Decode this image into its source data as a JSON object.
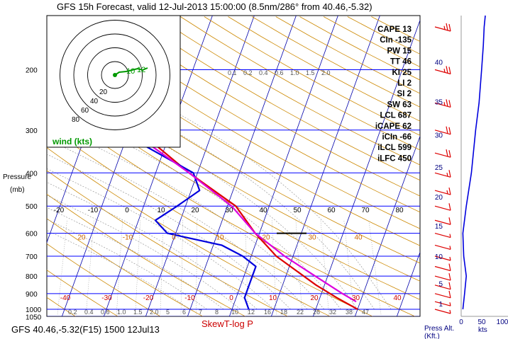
{
  "chart_data": {
    "type": "skew-t log-p",
    "title": "GFS 15h Forecast, valid 12-Jul-2013 15:00:00 (8.5nm/286° from 40.46,-5.32)",
    "xlabel": "SkewT-log P",
    "ylabel": "Pressure",
    "ylabel_unit": "(mb)",
    "footer": "GFS 40.46,-5.32(F15) 1500 12Jul13",
    "pressure_ticks": [
      1050,
      1000,
      900,
      800,
      700,
      600,
      500,
      400,
      300,
      200
    ],
    "temperature_ticks": {
      "upper_row": [
        "-20",
        "-10",
        "0",
        "10",
        "20",
        "30",
        "40",
        "50",
        "60",
        "70",
        "80"
      ],
      "middle_row": [
        "20",
        "-10",
        "0",
        "10",
        "20",
        "30",
        "40"
      ],
      "lower_row": [
        "-40",
        "-30",
        "-20",
        "-10",
        "0",
        "10",
        "20",
        "30",
        "40"
      ]
    },
    "mixing_ratio_labels_top": [
      "0.1",
      "0.2",
      "0.4",
      "0.6",
      "1.0",
      "1.5",
      "2.0"
    ],
    "mixing_ratio_labels_bottom": [
      "0.2",
      "0.4",
      "0.6",
      "1.0",
      "1.5",
      "2.0",
      "5",
      "6",
      "7",
      "8",
      "10",
      "12",
      "16",
      "18",
      "22",
      "26",
      "32",
      "38",
      "47"
    ],
    "series": [
      {
        "name": "temperature",
        "color": "#dd0000",
        "points": [
          [
            1000,
            30
          ],
          [
            925,
            24
          ],
          [
            850,
            18
          ],
          [
            700,
            6
          ],
          [
            600,
            -1
          ],
          [
            500,
            -8
          ],
          [
            400,
            -22
          ],
          [
            300,
            -38
          ],
          [
            250,
            -47
          ],
          [
            200,
            -51
          ],
          [
            150,
            -55
          ]
        ]
      },
      {
        "name": "dewpoint",
        "color": "#0000dd",
        "points": [
          [
            1000,
            4
          ],
          [
            925,
            2
          ],
          [
            850,
            2
          ],
          [
            750,
            2
          ],
          [
            700,
            -2
          ],
          [
            650,
            -8
          ],
          [
            600,
            -22
          ],
          [
            550,
            -26
          ],
          [
            500,
            -22
          ],
          [
            450,
            -18
          ],
          [
            400,
            -21
          ],
          [
            300,
            -43
          ],
          [
            250,
            -52
          ],
          [
            200,
            -63
          ],
          [
            150,
            -73
          ]
        ]
      },
      {
        "name": "parcel",
        "color": "#dd00dd",
        "points": [
          [
            950,
            29
          ],
          [
            900,
            25
          ],
          [
            800,
            17
          ],
          [
            700,
            8
          ],
          [
            600,
            -1
          ],
          [
            500,
            -9
          ],
          [
            400,
            -22
          ],
          [
            300,
            -40
          ],
          [
            200,
            -62
          ],
          [
            150,
            -75
          ]
        ]
      }
    ],
    "parcel_marker": {
      "pressure": 600,
      "label": ""
    },
    "indices": [
      {
        "name": "CAPE",
        "value": "13"
      },
      {
        "name": "CIn",
        "value": "-135"
      },
      {
        "name": "PW",
        "value": "15"
      },
      {
        "name": "TT",
        "value": "46"
      },
      {
        "name": "KI",
        "value": "25"
      },
      {
        "name": "LI",
        "value": "2"
      },
      {
        "name": "SI",
        "value": "2"
      },
      {
        "name": "SW",
        "value": "63"
      },
      {
        "name": "LCL",
        "value": "687"
      },
      {
        "name": "iCAPE",
        "value": "62"
      },
      {
        "name": "iCIn",
        "value": "-66"
      },
      {
        "name": "iLCL",
        "value": "599"
      },
      {
        "name": "iLFC",
        "value": "450"
      }
    ],
    "hodograph": {
      "label": "wind (kts)",
      "ring_labels": [
        "20",
        "40",
        "60",
        "80"
      ],
      "trace_labels": [
        "10",
        "12"
      ]
    },
    "altitude_axis": {
      "label": "Press Alt.",
      "unit": "(Kft.)",
      "ticks": [
        "1",
        "5",
        "10",
        "15",
        "20",
        "25",
        "30",
        "35",
        "40"
      ]
    },
    "speed_axis": {
      "unit": "kts",
      "ticks": [
        "0",
        "50",
        "100"
      ]
    },
    "wind_speed_profile": [
      [
        1000,
        2
      ],
      [
        900,
        4
      ],
      [
        800,
        6
      ],
      [
        700,
        3
      ],
      [
        600,
        2
      ],
      [
        500,
        6
      ],
      [
        400,
        12
      ],
      [
        300,
        17
      ],
      [
        250,
        21
      ],
      [
        200,
        24
      ],
      [
        170,
        26
      ],
      [
        150,
        27
      ]
    ],
    "wind_barbs": [
      {
        "pressure": 1000,
        "speed": 5
      },
      {
        "pressure": 950,
        "speed": 5
      },
      {
        "pressure": 900,
        "speed": 10
      },
      {
        "pressure": 850,
        "speed": 10
      },
      {
        "pressure": 800,
        "speed": 10
      },
      {
        "pressure": 750,
        "speed": 10
      },
      {
        "pressure": 700,
        "speed": 5
      },
      {
        "pressure": 650,
        "speed": 5
      },
      {
        "pressure": 600,
        "speed": 5
      },
      {
        "pressure": 550,
        "speed": 10
      },
      {
        "pressure": 500,
        "speed": 10
      },
      {
        "pressure": 450,
        "speed": 15
      },
      {
        "pressure": 400,
        "speed": 15
      },
      {
        "pressure": 350,
        "speed": 20
      },
      {
        "pressure": 300,
        "speed": 20
      },
      {
        "pressure": 250,
        "speed": 25
      },
      {
        "pressure": 200,
        "speed": 25
      },
      {
        "pressure": 150,
        "speed": 25
      }
    ],
    "colors": {
      "isobar": "#0000ff",
      "isotherm": "#0000aa",
      "dry_adiabat": "#cc8800",
      "moist_adiabat": "#888888",
      "mixing_ratio": "#808080",
      "temperature": "#dd0000",
      "dewpoint": "#0000dd",
      "parcel": "#dd00dd",
      "hodograph_rings": "#000000",
      "hodograph_trace": "#009900",
      "barbs": "#dd0000"
    }
  }
}
